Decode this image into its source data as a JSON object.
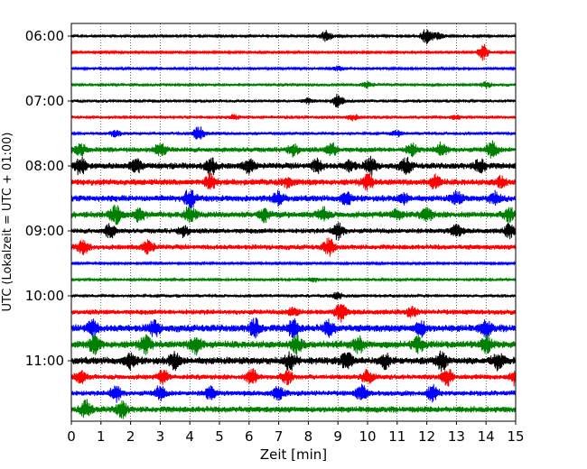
{
  "chart_data": {
    "type": "line",
    "title": "",
    "xlabel": "Zeit  [min]",
    "ylabel": "UTC (Lokalzeit = UTC + 01:00)",
    "xlim": [
      0,
      15
    ],
    "x_ticks": [
      "0",
      "1",
      "2",
      "3",
      "4",
      "5",
      "6",
      "7",
      "8",
      "9",
      "10",
      "11",
      "12",
      "13",
      "14",
      "15"
    ],
    "y_ticks": [
      "06:00",
      "07:00",
      "08:00",
      "09:00",
      "10:00",
      "11:00"
    ],
    "grid": "vertical dotted at each minute",
    "trace_color_cycle": [
      "#000000",
      "#ff0000",
      "#0000ff",
      "#008000"
    ],
    "traces": [
      {
        "time": "06:00",
        "color": "#000000",
        "amplitude": 0.25,
        "events": [
          [
            8.6,
            0.9
          ],
          [
            12.0,
            1.3
          ],
          [
            12.4,
            0.5
          ]
        ]
      },
      {
        "time": "06:15",
        "color": "#ff0000",
        "amplitude": 0.2,
        "events": [
          [
            13.9,
            1.3
          ]
        ]
      },
      {
        "time": "06:30",
        "color": "#0000ff",
        "amplitude": 0.25,
        "events": [
          [
            9.0,
            0.3
          ]
        ]
      },
      {
        "time": "06:45",
        "color": "#008000",
        "amplitude": 0.3,
        "events": [
          [
            10.0,
            0.4
          ],
          [
            14.0,
            0.4
          ]
        ]
      },
      {
        "time": "07:00",
        "color": "#000000",
        "amplitude": 0.3,
        "events": [
          [
            8.0,
            0.4
          ],
          [
            9.0,
            1.0
          ]
        ]
      },
      {
        "time": "07:15",
        "color": "#ff0000",
        "amplitude": 0.3,
        "events": [
          [
            5.5,
            0.3
          ],
          [
            9.5,
            0.4
          ],
          [
            13.0,
            0.3
          ]
        ]
      },
      {
        "time": "07:30",
        "color": "#0000ff",
        "amplitude": 0.3,
        "events": [
          [
            1.5,
            0.5
          ],
          [
            4.3,
            1.1
          ],
          [
            11.0,
            0.4
          ]
        ]
      },
      {
        "time": "07:45",
        "color": "#008000",
        "amplitude": 0.5,
        "events": [
          [
            0.3,
            0.8
          ],
          [
            3.0,
            1.0
          ],
          [
            7.5,
            0.9
          ],
          [
            8.8,
            0.9
          ],
          [
            11.5,
            1.0
          ],
          [
            12.5,
            1.1
          ],
          [
            14.2,
            1.3
          ]
        ]
      },
      {
        "time": "08:00",
        "color": "#000000",
        "amplitude": 0.6,
        "events": [
          [
            0.3,
            1.3
          ],
          [
            2.2,
            1.0
          ],
          [
            4.7,
            1.4
          ],
          [
            6.0,
            1.0
          ],
          [
            8.3,
            1.0
          ],
          [
            9.4,
            0.8
          ],
          [
            10.1,
            1.3
          ],
          [
            11.3,
            1.2
          ],
          [
            13.8,
            1.1
          ]
        ]
      },
      {
        "time": "08:15",
        "color": "#ff0000",
        "amplitude": 0.6,
        "events": [
          [
            4.7,
            1.3
          ],
          [
            7.3,
            0.8
          ],
          [
            10.0,
            1.1
          ],
          [
            12.3,
            1.0
          ],
          [
            14.5,
            0.8
          ]
        ]
      },
      {
        "time": "08:30",
        "color": "#0000ff",
        "amplitude": 0.6,
        "events": [
          [
            4.0,
            1.5
          ],
          [
            7.0,
            1.0
          ],
          [
            9.3,
            1.0
          ],
          [
            11.2,
            0.8
          ],
          [
            13.0,
            1.0
          ],
          [
            14.3,
            0.9
          ]
        ]
      },
      {
        "time": "08:45",
        "color": "#008000",
        "amplitude": 0.6,
        "events": [
          [
            1.5,
            1.3
          ],
          [
            2.3,
            1.0
          ],
          [
            4.0,
            1.3
          ],
          [
            6.5,
            1.0
          ],
          [
            8.5,
            1.0
          ],
          [
            11.0,
            0.8
          ],
          [
            12.0,
            1.0
          ],
          [
            14.8,
            1.0
          ]
        ]
      },
      {
        "time": "09:00",
        "color": "#000000",
        "amplitude": 0.5,
        "events": [
          [
            1.3,
            1.0
          ],
          [
            3.8,
            0.8
          ],
          [
            9.0,
            1.3
          ],
          [
            13.0,
            1.0
          ],
          [
            14.8,
            1.0
          ]
        ]
      },
      {
        "time": "09:15",
        "color": "#ff0000",
        "amplitude": 0.5,
        "events": [
          [
            0.4,
            1.1
          ],
          [
            2.6,
            1.0
          ],
          [
            8.7,
            1.3
          ]
        ]
      },
      {
        "time": "09:30",
        "color": "#0000ff",
        "amplitude": 0.2,
        "events": []
      },
      {
        "time": "09:45",
        "color": "#008000",
        "amplitude": 0.25,
        "events": [
          [
            8.2,
            0.3
          ]
        ]
      },
      {
        "time": "10:00",
        "color": "#000000",
        "amplitude": 0.3,
        "events": [
          [
            9.0,
            0.5
          ]
        ]
      },
      {
        "time": "10:15",
        "color": "#ff0000",
        "amplitude": 0.5,
        "events": [
          [
            7.5,
            0.7
          ],
          [
            9.1,
            1.5
          ],
          [
            11.5,
            0.7
          ]
        ]
      },
      {
        "time": "10:30",
        "color": "#0000ff",
        "amplitude": 0.7,
        "events": [
          [
            0.7,
            1.2
          ],
          [
            2.8,
            1.1
          ],
          [
            6.2,
            1.4
          ],
          [
            7.5,
            1.3
          ],
          [
            8.7,
            1.1
          ],
          [
            11.8,
            1.1
          ],
          [
            14.0,
            1.2
          ]
        ]
      },
      {
        "time": "10:45",
        "color": "#008000",
        "amplitude": 0.7,
        "events": [
          [
            0.8,
            1.3
          ],
          [
            2.5,
            1.3
          ],
          [
            4.2,
            1.4
          ],
          [
            7.6,
            1.3
          ],
          [
            9.7,
            1.2
          ],
          [
            11.7,
            1.2
          ],
          [
            14.0,
            1.2
          ]
        ]
      },
      {
        "time": "11:00",
        "color": "#000000",
        "amplitude": 0.7,
        "events": [
          [
            2.0,
            1.2
          ],
          [
            3.5,
            1.4
          ],
          [
            7.4,
            1.3
          ],
          [
            9.3,
            1.2
          ],
          [
            10.6,
            1.0
          ],
          [
            12.5,
            1.3
          ],
          [
            14.4,
            1.2
          ]
        ]
      },
      {
        "time": "11:15",
        "color": "#ff0000",
        "amplitude": 0.5,
        "events": [
          [
            0.3,
            1.0
          ],
          [
            3.1,
            1.0
          ],
          [
            6.1,
            1.3
          ],
          [
            7.3,
            1.0
          ],
          [
            10.0,
            1.1
          ],
          [
            12.7,
            1.3
          ],
          [
            15.0,
            1.4
          ]
        ]
      },
      {
        "time": "11:30",
        "color": "#0000ff",
        "amplitude": 0.5,
        "events": [
          [
            1.5,
            1.3
          ],
          [
            3.0,
            1.1
          ],
          [
            4.7,
            1.0
          ],
          [
            7.0,
            1.0
          ],
          [
            9.8,
            1.2
          ],
          [
            12.2,
            1.3
          ]
        ]
      },
      {
        "time": "11:45",
        "color": "#008000",
        "amplitude": 0.6,
        "events": [
          [
            0.5,
            1.3
          ],
          [
            1.7,
            1.3
          ]
        ]
      }
    ]
  }
}
